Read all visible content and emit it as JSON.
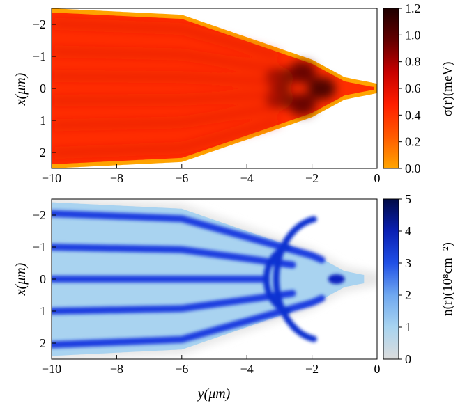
{
  "chart_data": [
    {
      "type": "heatmap",
      "panel": "top",
      "title": "",
      "xlabel": "",
      "ylabel": "x(μm)",
      "xlim": [
        -10,
        0
      ],
      "ylim": [
        -2.5,
        2.5
      ],
      "y_axis_inverted": true,
      "xticks": [
        -10,
        -8,
        -6,
        -4,
        -2,
        0
      ],
      "yticks": [
        -2,
        -1,
        0,
        1,
        2
      ],
      "colorbar": {
        "label": "σ(r)(meV)",
        "range": [
          0.0,
          1.2
        ],
        "ticks": [
          0.0,
          0.2,
          0.4,
          0.6,
          0.8,
          1.0,
          1.2
        ],
        "colormap": "hot",
        "colors": [
          "#ffa500",
          "#ff5a00",
          "#ff1e00",
          "#c80000",
          "#640000",
          "#1e0000"
        ]
      },
      "description_values": {
        "background_value": 0.0,
        "fan_shape": "wide at y=-10 (full width), narrowing to a thin tail near y=0",
        "interior_level": 0.7,
        "dark_spots": [
          {
            "x": 0,
            "y": -1.7,
            "value": 1.15
          },
          {
            "x": -0.5,
            "y": -2.3,
            "value": 1.05
          },
          {
            "x": 0.5,
            "y": -2.3,
            "value": 1.05
          },
          {
            "x": -0.3,
            "y": -3.0,
            "value": 0.95
          },
          {
            "x": 0.3,
            "y": -3.0,
            "value": 0.95
          }
        ]
      }
    },
    {
      "type": "heatmap",
      "panel": "bottom",
      "title": "",
      "xlabel": "y(μm)",
      "ylabel": "x(μm)",
      "xlim": [
        -10,
        0
      ],
      "ylim": [
        -2.5,
        2.5
      ],
      "y_axis_inverted": true,
      "xticks": [
        -10,
        -8,
        -6,
        -4,
        -2,
        0
      ],
      "yticks": [
        -2,
        -1,
        0,
        1,
        2
      ],
      "colorbar": {
        "label": "n(r)(10⁸cm⁻²)",
        "range": [
          0,
          5
        ],
        "ticks": [
          0,
          1,
          2,
          3,
          4,
          5
        ],
        "colormap": "blues",
        "colors": [
          "#dcdcdc",
          "#a8d4f0",
          "#6fa8f0",
          "#2050e6",
          "#0a20b4",
          "#000a46"
        ]
      },
      "description_values": {
        "stripe_count": 5,
        "stripe_value": 4.0,
        "gap_value": 1.0,
        "tip_spot": {
          "x": 0,
          "y": -1.25,
          "value": 4.5
        }
      }
    }
  ]
}
